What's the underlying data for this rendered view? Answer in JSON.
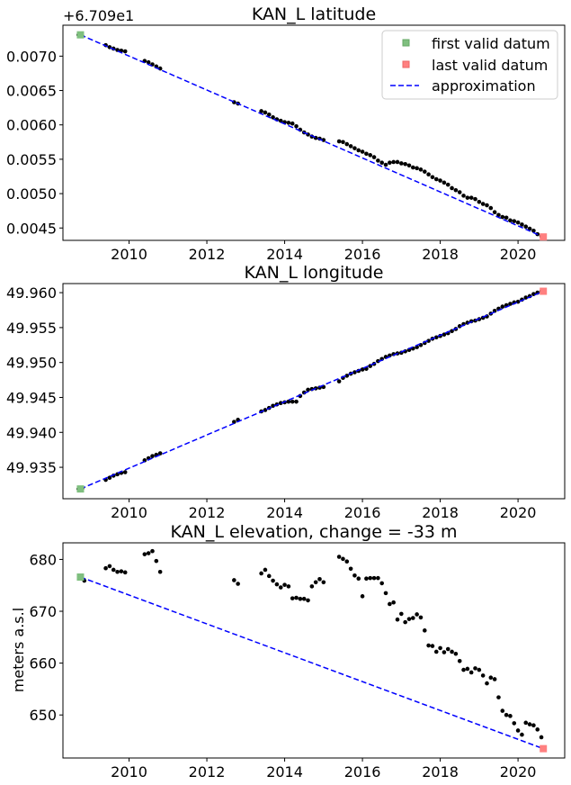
{
  "chart_data": [
    {
      "type": "scatter",
      "title": "KAN_L latitude",
      "xlabel": "",
      "ylabel": "",
      "offset_text": "+6.709e1",
      "xlim": [
        2008.3,
        2021.2
      ],
      "ylim": [
        0.00432,
        0.00745
      ],
      "xticks": [
        2010,
        2012,
        2014,
        2016,
        2018,
        2020
      ],
      "xtick_labels": [
        "2010",
        "2012",
        "2014",
        "2016",
        "2018",
        "2020"
      ],
      "yticks": [
        0.0045,
        0.005,
        0.0055,
        0.006,
        0.0065,
        0.007
      ],
      "ytick_labels": [
        "0.0045",
        "0.0050",
        "0.0055",
        "0.0060",
        "0.0065",
        "0.0070"
      ],
      "legend": {
        "position": "upper-right",
        "entries": [
          {
            "label": "first valid datum",
            "kind": "square",
            "color": "#7fbf7f"
          },
          {
            "label": "last valid datum",
            "kind": "square",
            "color": "#ff8080"
          },
          {
            "label": "approximation",
            "kind": "dashed",
            "color": "#0000ff"
          }
        ]
      },
      "series": [
        {
          "kind": "points",
          "color": "#000000",
          "x": [
            2008.7,
            2008.8,
            2009.4,
            2009.5,
            2009.6,
            2009.7,
            2009.8,
            2009.9,
            2010.4,
            2010.5,
            2010.6,
            2010.7,
            2010.8,
            2012.7,
            2012.8,
            2013.4,
            2013.5,
            2013.6,
            2013.7,
            2013.8,
            2013.9,
            2014.0,
            2014.1,
            2014.2,
            2014.3,
            2014.4,
            2014.5,
            2014.6,
            2014.7,
            2014.8,
            2014.9,
            2015.0,
            2015.4,
            2015.5,
            2015.6,
            2015.7,
            2015.8,
            2015.9,
            2016.0,
            2016.1,
            2016.2,
            2016.3,
            2016.4,
            2016.5,
            2016.6,
            2016.7,
            2016.8,
            2016.9,
            2017.0,
            2017.1,
            2017.2,
            2017.3,
            2017.4,
            2017.5,
            2017.6,
            2017.7,
            2017.8,
            2017.9,
            2018.0,
            2018.1,
            2018.2,
            2018.3,
            2018.4,
            2018.5,
            2018.6,
            2018.7,
            2018.8,
            2018.9,
            2019.0,
            2019.1,
            2019.2,
            2019.3,
            2019.4,
            2019.5,
            2019.6,
            2019.7,
            2019.8,
            2019.9,
            2020.0,
            2020.1,
            2020.2,
            2020.3,
            2020.4,
            2020.5,
            2020.6
          ],
          "y": [
            0.00731,
            0.00729,
            0.00716,
            0.00713,
            0.00711,
            0.00709,
            0.00708,
            0.00707,
            0.00693,
            0.00691,
            0.00688,
            0.00685,
            0.00682,
            0.00633,
            0.00631,
            0.0062,
            0.00618,
            0.00615,
            0.00611,
            0.00608,
            0.00606,
            0.00604,
            0.00603,
            0.00602,
            0.00598,
            0.00593,
            0.00589,
            0.00586,
            0.00583,
            0.00581,
            0.0058,
            0.00578,
            0.00576,
            0.00575,
            0.00572,
            0.00569,
            0.00566,
            0.00563,
            0.00561,
            0.00558,
            0.00556,
            0.00553,
            0.00548,
            0.00545,
            0.00542,
            0.00545,
            0.00546,
            0.00546,
            0.00544,
            0.00543,
            0.00541,
            0.00538,
            0.00537,
            0.00535,
            0.00532,
            0.00528,
            0.00524,
            0.00521,
            0.00519,
            0.00516,
            0.00513,
            0.00508,
            0.00505,
            0.00502,
            0.00497,
            0.00494,
            0.00494,
            0.00492,
            0.00488,
            0.00485,
            0.00483,
            0.00479,
            0.00473,
            0.00469,
            0.00466,
            0.00465,
            0.00461,
            0.0046,
            0.00458,
            0.00455,
            0.00452,
            0.00449,
            0.00446,
            0.00441,
            0.00438
          ]
        },
        {
          "kind": "line",
          "color": "#0000ff",
          "x": [
            2008.75,
            2020.65
          ],
          "y": [
            0.00731,
            0.00437
          ]
        },
        {
          "kind": "marker",
          "color": "#7fbf7f",
          "x": [
            2008.75
          ],
          "y": [
            0.00731
          ]
        },
        {
          "kind": "marker",
          "color": "#ff8080",
          "x": [
            2020.65
          ],
          "y": [
            0.00437
          ]
        }
      ]
    },
    {
      "type": "scatter",
      "title": "KAN_L longitude",
      "xlabel": "",
      "ylabel": "",
      "xlim": [
        2008.3,
        2021.2
      ],
      "ylim": [
        49.9305,
        49.9613
      ],
      "xticks": [
        2010,
        2012,
        2014,
        2016,
        2018,
        2020
      ],
      "xtick_labels": [
        "2010",
        "2012",
        "2014",
        "2016",
        "2018",
        "2020"
      ],
      "yticks": [
        49.935,
        49.94,
        49.945,
        49.95,
        49.955,
        49.96
      ],
      "ytick_labels": [
        "49.935",
        "49.940",
        "49.945",
        "49.950",
        "49.955",
        "49.960"
      ],
      "series": [
        {
          "kind": "points",
          "color": "#000000",
          "x": [
            2008.7,
            2008.8,
            2009.4,
            2009.5,
            2009.6,
            2009.7,
            2009.8,
            2009.9,
            2010.4,
            2010.5,
            2010.6,
            2010.7,
            2010.8,
            2012.7,
            2012.8,
            2013.4,
            2013.5,
            2013.6,
            2013.7,
            2013.8,
            2013.9,
            2014.0,
            2014.1,
            2014.2,
            2014.3,
            2014.4,
            2014.5,
            2014.6,
            2014.7,
            2014.8,
            2014.9,
            2015.0,
            2015.4,
            2015.5,
            2015.6,
            2015.7,
            2015.8,
            2015.9,
            2016.0,
            2016.1,
            2016.2,
            2016.3,
            2016.4,
            2016.5,
            2016.6,
            2016.7,
            2016.8,
            2016.9,
            2017.0,
            2017.1,
            2017.2,
            2017.3,
            2017.4,
            2017.5,
            2017.6,
            2017.7,
            2017.8,
            2017.9,
            2018.0,
            2018.1,
            2018.2,
            2018.3,
            2018.4,
            2018.5,
            2018.6,
            2018.7,
            2018.8,
            2018.9,
            2019.0,
            2019.1,
            2019.2,
            2019.3,
            2019.4,
            2019.5,
            2019.6,
            2019.7,
            2019.8,
            2019.9,
            2020.0,
            2020.1,
            2020.2,
            2020.3,
            2020.4,
            2020.5,
            2020.6
          ],
          "y": [
            49.9319,
            49.932,
            49.9332,
            49.9335,
            49.9338,
            49.934,
            49.9342,
            49.9343,
            49.936,
            49.9363,
            49.9366,
            49.9368,
            49.937,
            49.9415,
            49.9418,
            49.943,
            49.9432,
            49.9435,
            49.9438,
            49.944,
            49.9442,
            49.9443,
            49.9444,
            49.9444,
            49.9444,
            49.9452,
            49.9457,
            49.9461,
            49.9462,
            49.9463,
            49.9464,
            49.9465,
            49.9473,
            49.9478,
            49.9481,
            49.9484,
            49.9486,
            49.9488,
            49.949,
            49.9491,
            49.9495,
            49.9498,
            49.9502,
            49.9505,
            49.9508,
            49.951,
            49.9512,
            49.9513,
            49.9514,
            49.9516,
            49.9518,
            49.952,
            49.9522,
            49.9525,
            49.9528,
            49.9531,
            49.9534,
            49.9536,
            49.9538,
            49.954,
            49.9542,
            49.9545,
            49.9548,
            49.9552,
            49.9555,
            49.9557,
            49.9559,
            49.956,
            49.9562,
            49.9564,
            49.9566,
            49.957,
            49.9574,
            49.9577,
            49.958,
            49.9582,
            49.9584,
            49.9586,
            49.9587,
            49.959,
            49.9593,
            49.9595,
            49.9598,
            49.96,
            49.9602
          ]
        },
        {
          "kind": "line",
          "color": "#0000ff",
          "x": [
            2008.75,
            2020.65
          ],
          "y": [
            49.9319,
            49.9602
          ]
        },
        {
          "kind": "marker",
          "color": "#7fbf7f",
          "x": [
            2008.75
          ],
          "y": [
            49.9319
          ]
        },
        {
          "kind": "marker",
          "color": "#ff8080",
          "x": [
            2020.65
          ],
          "y": [
            49.9602
          ]
        }
      ]
    },
    {
      "type": "scatter",
      "title": "KAN_L elevation, change = -33 m",
      "xlabel": "",
      "ylabel": "meters a.s.l",
      "xlim": [
        2008.3,
        2021.2
      ],
      "ylim": [
        641.7,
        683.2
      ],
      "xticks": [
        2010,
        2012,
        2014,
        2016,
        2018,
        2020
      ],
      "xtick_labels": [
        "2010",
        "2012",
        "2014",
        "2016",
        "2018",
        "2020"
      ],
      "yticks": [
        650,
        660,
        670,
        680
      ],
      "ytick_labels": [
        "650",
        "660",
        "670",
        "680"
      ],
      "series": [
        {
          "kind": "points",
          "color": "#000000",
          "x": [
            2008.75,
            2008.85,
            2009.4,
            2009.5,
            2009.6,
            2009.7,
            2009.8,
            2009.9,
            2010.4,
            2010.5,
            2010.6,
            2010.7,
            2010.8,
            2012.7,
            2012.8,
            2013.4,
            2013.5,
            2013.6,
            2013.7,
            2013.8,
            2013.9,
            2014.0,
            2014.1,
            2014.2,
            2014.3,
            2014.4,
            2014.5,
            2014.6,
            2014.7,
            2014.8,
            2014.9,
            2015.0,
            2015.4,
            2015.5,
            2015.6,
            2015.7,
            2015.8,
            2015.9,
            2016.0,
            2016.1,
            2016.2,
            2016.3,
            2016.4,
            2016.5,
            2016.6,
            2016.7,
            2016.8,
            2016.9,
            2017.0,
            2017.1,
            2017.2,
            2017.3,
            2017.4,
            2017.5,
            2017.6,
            2017.7,
            2017.8,
            2017.9,
            2018.0,
            2018.1,
            2018.2,
            2018.3,
            2018.4,
            2018.5,
            2018.6,
            2018.7,
            2018.8,
            2018.9,
            2019.0,
            2019.1,
            2019.2,
            2019.3,
            2019.4,
            2019.5,
            2019.6,
            2019.7,
            2019.8,
            2019.9,
            2020.0,
            2020.1,
            2020.2,
            2020.3,
            2020.4,
            2020.5,
            2020.6
          ],
          "y": [
            676.6,
            675.9,
            678.3,
            678.7,
            678.0,
            677.6,
            677.7,
            677.5,
            681.0,
            681.2,
            681.6,
            679.7,
            677.6,
            676.0,
            675.3,
            677.3,
            678.0,
            676.8,
            675.9,
            675.2,
            674.6,
            675.1,
            674.8,
            672.5,
            672.6,
            672.4,
            672.4,
            672.1,
            674.8,
            675.6,
            676.2,
            675.6,
            680.5,
            680.1,
            679.6,
            678.2,
            676.9,
            676.3,
            672.9,
            676.3,
            676.4,
            676.4,
            676.4,
            675.4,
            673.5,
            671.4,
            671.7,
            668.4,
            669.5,
            667.9,
            668.5,
            668.7,
            669.4,
            668.8,
            666.3,
            663.4,
            663.3,
            662.2,
            662.9,
            662.1,
            662.7,
            662.2,
            661.8,
            660.4,
            658.7,
            658.9,
            658.2,
            659.0,
            658.7,
            657.6,
            656.1,
            657.2,
            656.9,
            653.4,
            650.8,
            650.0,
            649.8,
            648.4,
            647.0,
            646.2,
            648.5,
            648.2,
            648.0,
            647.2,
            645.7
          ]
        },
        {
          "kind": "line",
          "color": "#0000ff",
          "x": [
            2008.75,
            2020.65
          ],
          "y": [
            676.6,
            643.5
          ]
        },
        {
          "kind": "marker",
          "color": "#7fbf7f",
          "x": [
            2008.75
          ],
          "y": [
            676.6
          ]
        },
        {
          "kind": "marker",
          "color": "#ff8080",
          "x": [
            2020.65
          ],
          "y": [
            643.5
          ]
        }
      ]
    }
  ]
}
